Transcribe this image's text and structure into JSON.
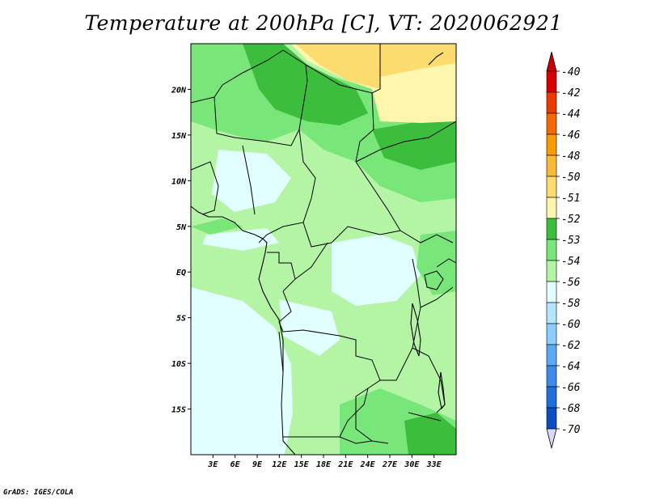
{
  "title": "Temperature at 200hPa [C], VT: 2020062921",
  "credit": "GrADS: IGES/COLA",
  "map": {
    "lon_range": [
      0,
      36
    ],
    "lat_range": [
      -20,
      25
    ],
    "lat_ticks": [
      {
        "value": 20,
        "label": "20N"
      },
      {
        "value": 15,
        "label": "15N"
      },
      {
        "value": 10,
        "label": "10N"
      },
      {
        "value": 5,
        "label": "5N"
      },
      {
        "value": 0,
        "label": "EQ"
      },
      {
        "value": -5,
        "label": "5S"
      },
      {
        "value": -10,
        "label": "10S"
      },
      {
        "value": -15,
        "label": "15S"
      }
    ],
    "lon_ticks": [
      {
        "value": 3,
        "label": "3E"
      },
      {
        "value": 6,
        "label": "6E"
      },
      {
        "value": 9,
        "label": "9E"
      },
      {
        "value": 12,
        "label": "12E"
      },
      {
        "value": 15,
        "label": "15E"
      },
      {
        "value": 18,
        "label": "18E"
      },
      {
        "value": 21,
        "label": "21E"
      },
      {
        "value": 24,
        "label": "24E"
      },
      {
        "value": 27,
        "label": "27E"
      },
      {
        "value": 30,
        "label": "30E"
      },
      {
        "value": 33,
        "label": "33E"
      }
    ]
  },
  "colorbar": {
    "levels": [
      {
        "label": "-40",
        "color": "#d70000"
      },
      {
        "label": "-42",
        "color": "#ee3a00"
      },
      {
        "label": "-44",
        "color": "#f46a00"
      },
      {
        "label": "-46",
        "color": "#f99b00"
      },
      {
        "label": "-48",
        "color": "#fbb938"
      },
      {
        "label": "-50",
        "color": "#fddc6f"
      },
      {
        "label": "-51",
        "color": "#fff6ae"
      },
      {
        "label": "-52",
        "color": "#3cbe3c"
      },
      {
        "label": "-53",
        "color": "#78e678"
      },
      {
        "label": "-54",
        "color": "#b4f5a5"
      },
      {
        "label": "-56",
        "color": "#e1ffff"
      },
      {
        "label": "-58",
        "color": "#b4e6ff"
      },
      {
        "label": "-60",
        "color": "#8ccdff"
      },
      {
        "label": "-62",
        "color": "#5aaaf5"
      },
      {
        "label": "-64",
        "color": "#3c8ceb"
      },
      {
        "label": "-66",
        "color": "#1e6edc"
      },
      {
        "label": "-68",
        "color": "#0a50c3"
      },
      {
        "label": "-70",
        "color": "#0a2896"
      }
    ],
    "top_arrow_color": "#cc0000",
    "bottom_arrow_color": "#d8d8ff",
    "extra_dark_color": "#000064"
  },
  "fill_colors": {
    "c51": "#fff6ae",
    "c50": "#fddc6f",
    "c52": "#3cbe3c",
    "c53": "#78e678",
    "c54": "#b4f5a5",
    "c56": "#e1ffff"
  }
}
